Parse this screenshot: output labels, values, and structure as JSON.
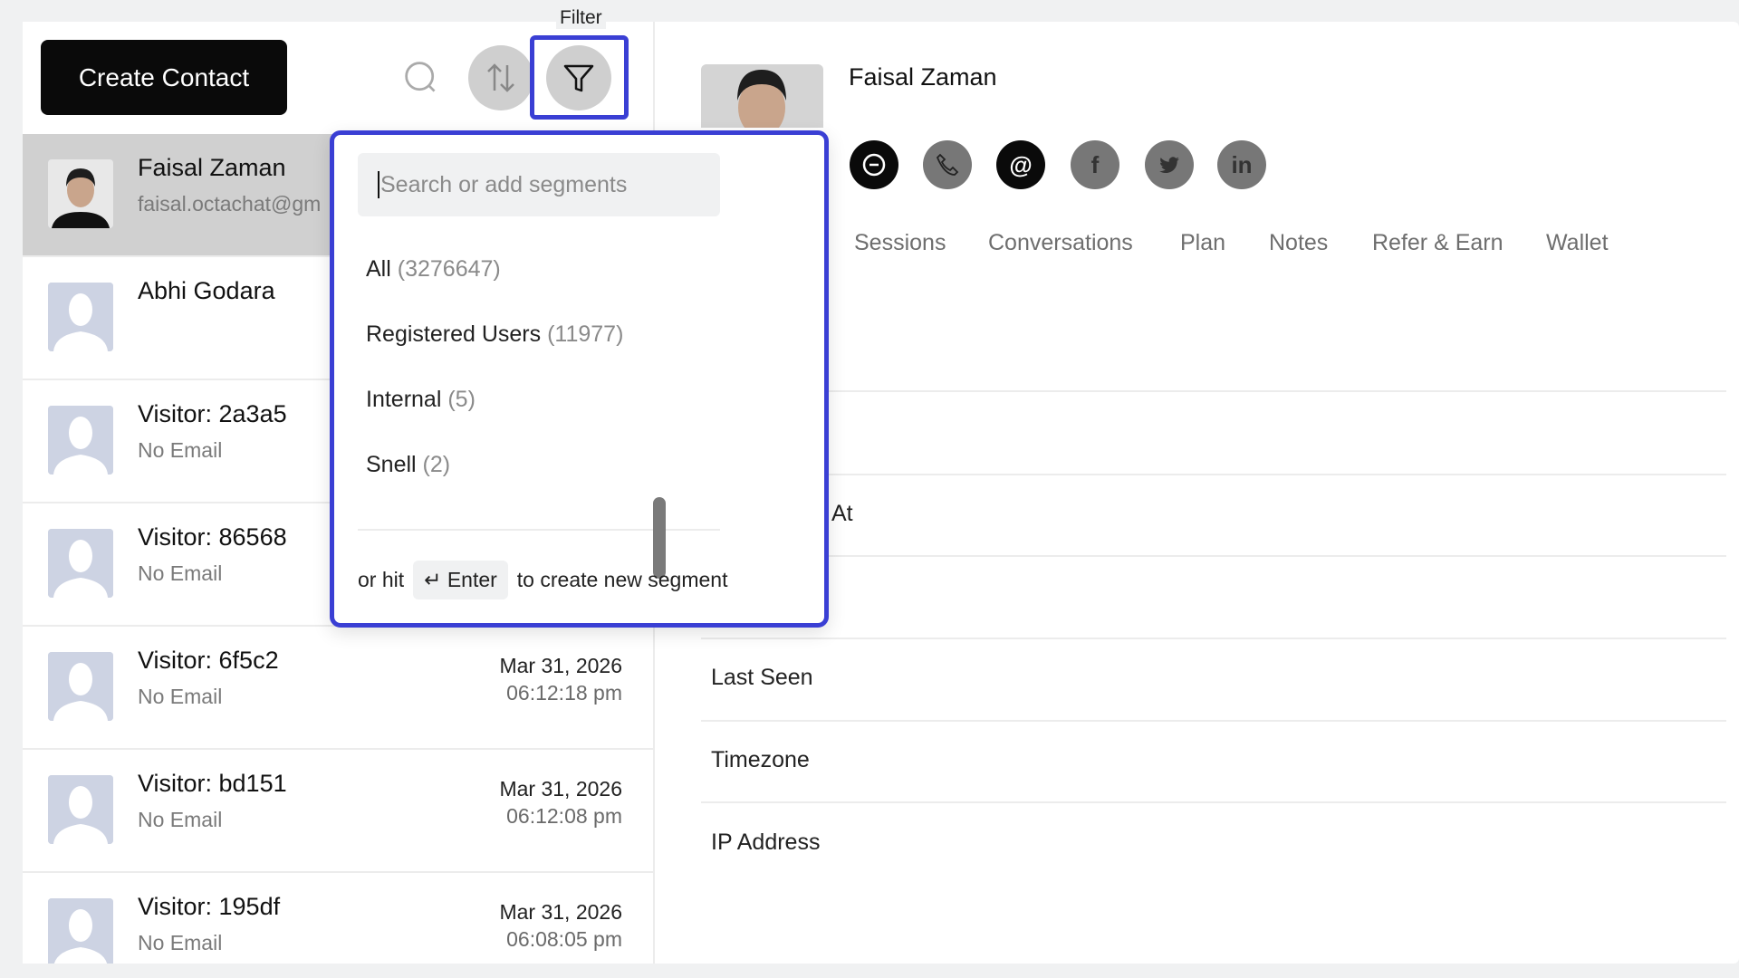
{
  "tooltip": "Filter",
  "toolbar": {
    "create_label": "Create Contact"
  },
  "contacts": [
    {
      "name": "Faisal Zaman",
      "email": "faisal.octachat@gm",
      "date": "",
      "time": "",
      "selected": true
    },
    {
      "name": "Abhi Godara",
      "email": "",
      "date": "",
      "time": ""
    },
    {
      "name": "Visitor: 2a3a5",
      "email": "No Email",
      "date": "",
      "time": ""
    },
    {
      "name": "Visitor: 86568",
      "email": "No Email",
      "date": "",
      "time": ""
    },
    {
      "name": "Visitor: 6f5c2",
      "email": "No Email",
      "date": "Mar 31, 2026",
      "time": "06:12:18 pm"
    },
    {
      "name": "Visitor: bd151",
      "email": "No Email",
      "date": "Mar 31, 2026",
      "time": "06:12:08 pm"
    },
    {
      "name": "Visitor: 195df",
      "email": "No Email",
      "date": "Mar 31, 2026",
      "time": "06:08:05 pm"
    }
  ],
  "segments": {
    "placeholder": "Search or add segments",
    "items": [
      {
        "label": "All",
        "count": "(3276647)"
      },
      {
        "label": "Registered Users",
        "count": "(11977)"
      },
      {
        "label": "Internal",
        "count": "(5)"
      },
      {
        "label": "Snell",
        "count": "(2)"
      }
    ],
    "footer_prefix": "or hit",
    "enter_key": "Enter",
    "footer_suffix": "to create new segment"
  },
  "profile": {
    "name": "Faisal Zaman",
    "actions": [
      "chat-icon",
      "phone-icon",
      "email-icon",
      "facebook-icon",
      "twitter-icon",
      "linkedin-icon"
    ],
    "tabs": [
      "Sessions",
      "Conversations",
      "Plan",
      "Notes",
      "Refer & Earn",
      "Wallet"
    ],
    "fields": [
      "At",
      "Last Seen",
      "Timezone",
      "IP Address"
    ]
  },
  "colors": {
    "highlight": "#3a3fd4",
    "selected_row": "#d0d0d0"
  }
}
